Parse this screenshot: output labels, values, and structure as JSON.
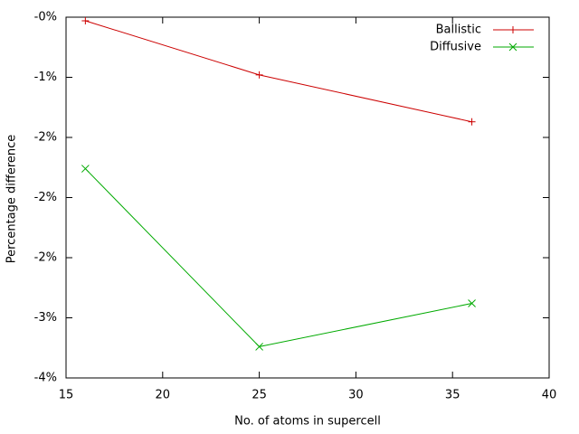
{
  "chart_data": {
    "type": "line",
    "x_label": "No. of atoms in supercell",
    "y_label": "Percentage difference",
    "x": [
      16,
      25,
      36
    ],
    "series": [
      {
        "name": "Ballistic",
        "color": "#cc0000",
        "marker": "plus",
        "values": [
          -0.53,
          -0.98,
          -1.37
        ]
      },
      {
        "name": "Diffusive",
        "color": "#00aa00",
        "marker": "cross",
        "values": [
          -1.76,
          -3.24,
          -2.88
        ]
      }
    ],
    "xlim": [
      15,
      40
    ],
    "xticks": [
      15,
      20,
      25,
      30,
      35,
      40
    ],
    "ylim": [
      -3.5,
      -0.5
    ],
    "yticks": [
      {
        "value": -0.5,
        "label": "-0%"
      },
      {
        "value": -1,
        "label": "-1%"
      },
      {
        "value": -1.5,
        "label": "-2%"
      },
      {
        "value": -2,
        "label": "-2%"
      },
      {
        "value": -2.5,
        "label": "-2%"
      },
      {
        "value": -3,
        "label": "-3%"
      },
      {
        "value": -3.5,
        "label": "-4%"
      }
    ],
    "legend": "top-right",
    "grid": false
  }
}
